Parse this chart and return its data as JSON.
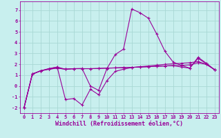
{
  "background_color": "#c8efee",
  "grid_color": "#a8d8d4",
  "line_color": "#990099",
  "x_values": [
    0,
    1,
    2,
    3,
    4,
    5,
    6,
    7,
    8,
    9,
    10,
    11,
    12,
    13,
    14,
    15,
    16,
    17,
    18,
    19,
    20,
    21,
    22,
    23
  ],
  "line1_y": [
    -2.0,
    1.1,
    1.4,
    1.55,
    1.65,
    1.55,
    1.6,
    1.6,
    1.6,
    1.62,
    1.65,
    1.67,
    1.7,
    1.72,
    1.75,
    1.78,
    1.82,
    1.85,
    1.88,
    1.75,
    1.65,
    2.55,
    2.05,
    1.5
  ],
  "line2_y": [
    -2.0,
    1.1,
    1.4,
    1.55,
    1.65,
    1.55,
    1.6,
    1.6,
    1.6,
    1.62,
    1.65,
    1.67,
    1.7,
    1.72,
    1.75,
    1.78,
    1.82,
    1.85,
    1.88,
    1.9,
    1.95,
    2.15,
    2.0,
    1.5
  ],
  "line3_y": [
    -2.0,
    1.1,
    1.4,
    1.6,
    1.75,
    -1.25,
    -1.15,
    -1.75,
    -0.3,
    -0.8,
    0.5,
    1.35,
    1.55,
    1.7,
    1.78,
    1.85,
    1.92,
    2.0,
    2.05,
    2.1,
    2.15,
    2.25,
    2.0,
    1.5
  ],
  "line4_y": [
    -2.0,
    1.1,
    1.4,
    1.6,
    1.75,
    1.55,
    1.6,
    1.62,
    0.0,
    -0.4,
    1.6,
    2.9,
    3.4,
    7.1,
    6.75,
    6.25,
    4.8,
    3.2,
    2.2,
    1.9,
    1.65,
    2.65,
    2.1,
    1.5
  ],
  "ylim": [
    -2.5,
    7.8
  ],
  "xlim": [
    -0.5,
    23.5
  ],
  "yticks": [
    -2,
    -1,
    0,
    1,
    2,
    3,
    4,
    5,
    6,
    7
  ],
  "xticks": [
    0,
    1,
    2,
    3,
    4,
    5,
    6,
    7,
    8,
    9,
    10,
    11,
    12,
    13,
    14,
    15,
    16,
    17,
    18,
    19,
    20,
    21,
    22,
    23
  ],
  "xlabel": "Windchill (Refroidissement éolien,°C)",
  "fontsize_label": 6.0,
  "fontsize_tick": 5.0
}
